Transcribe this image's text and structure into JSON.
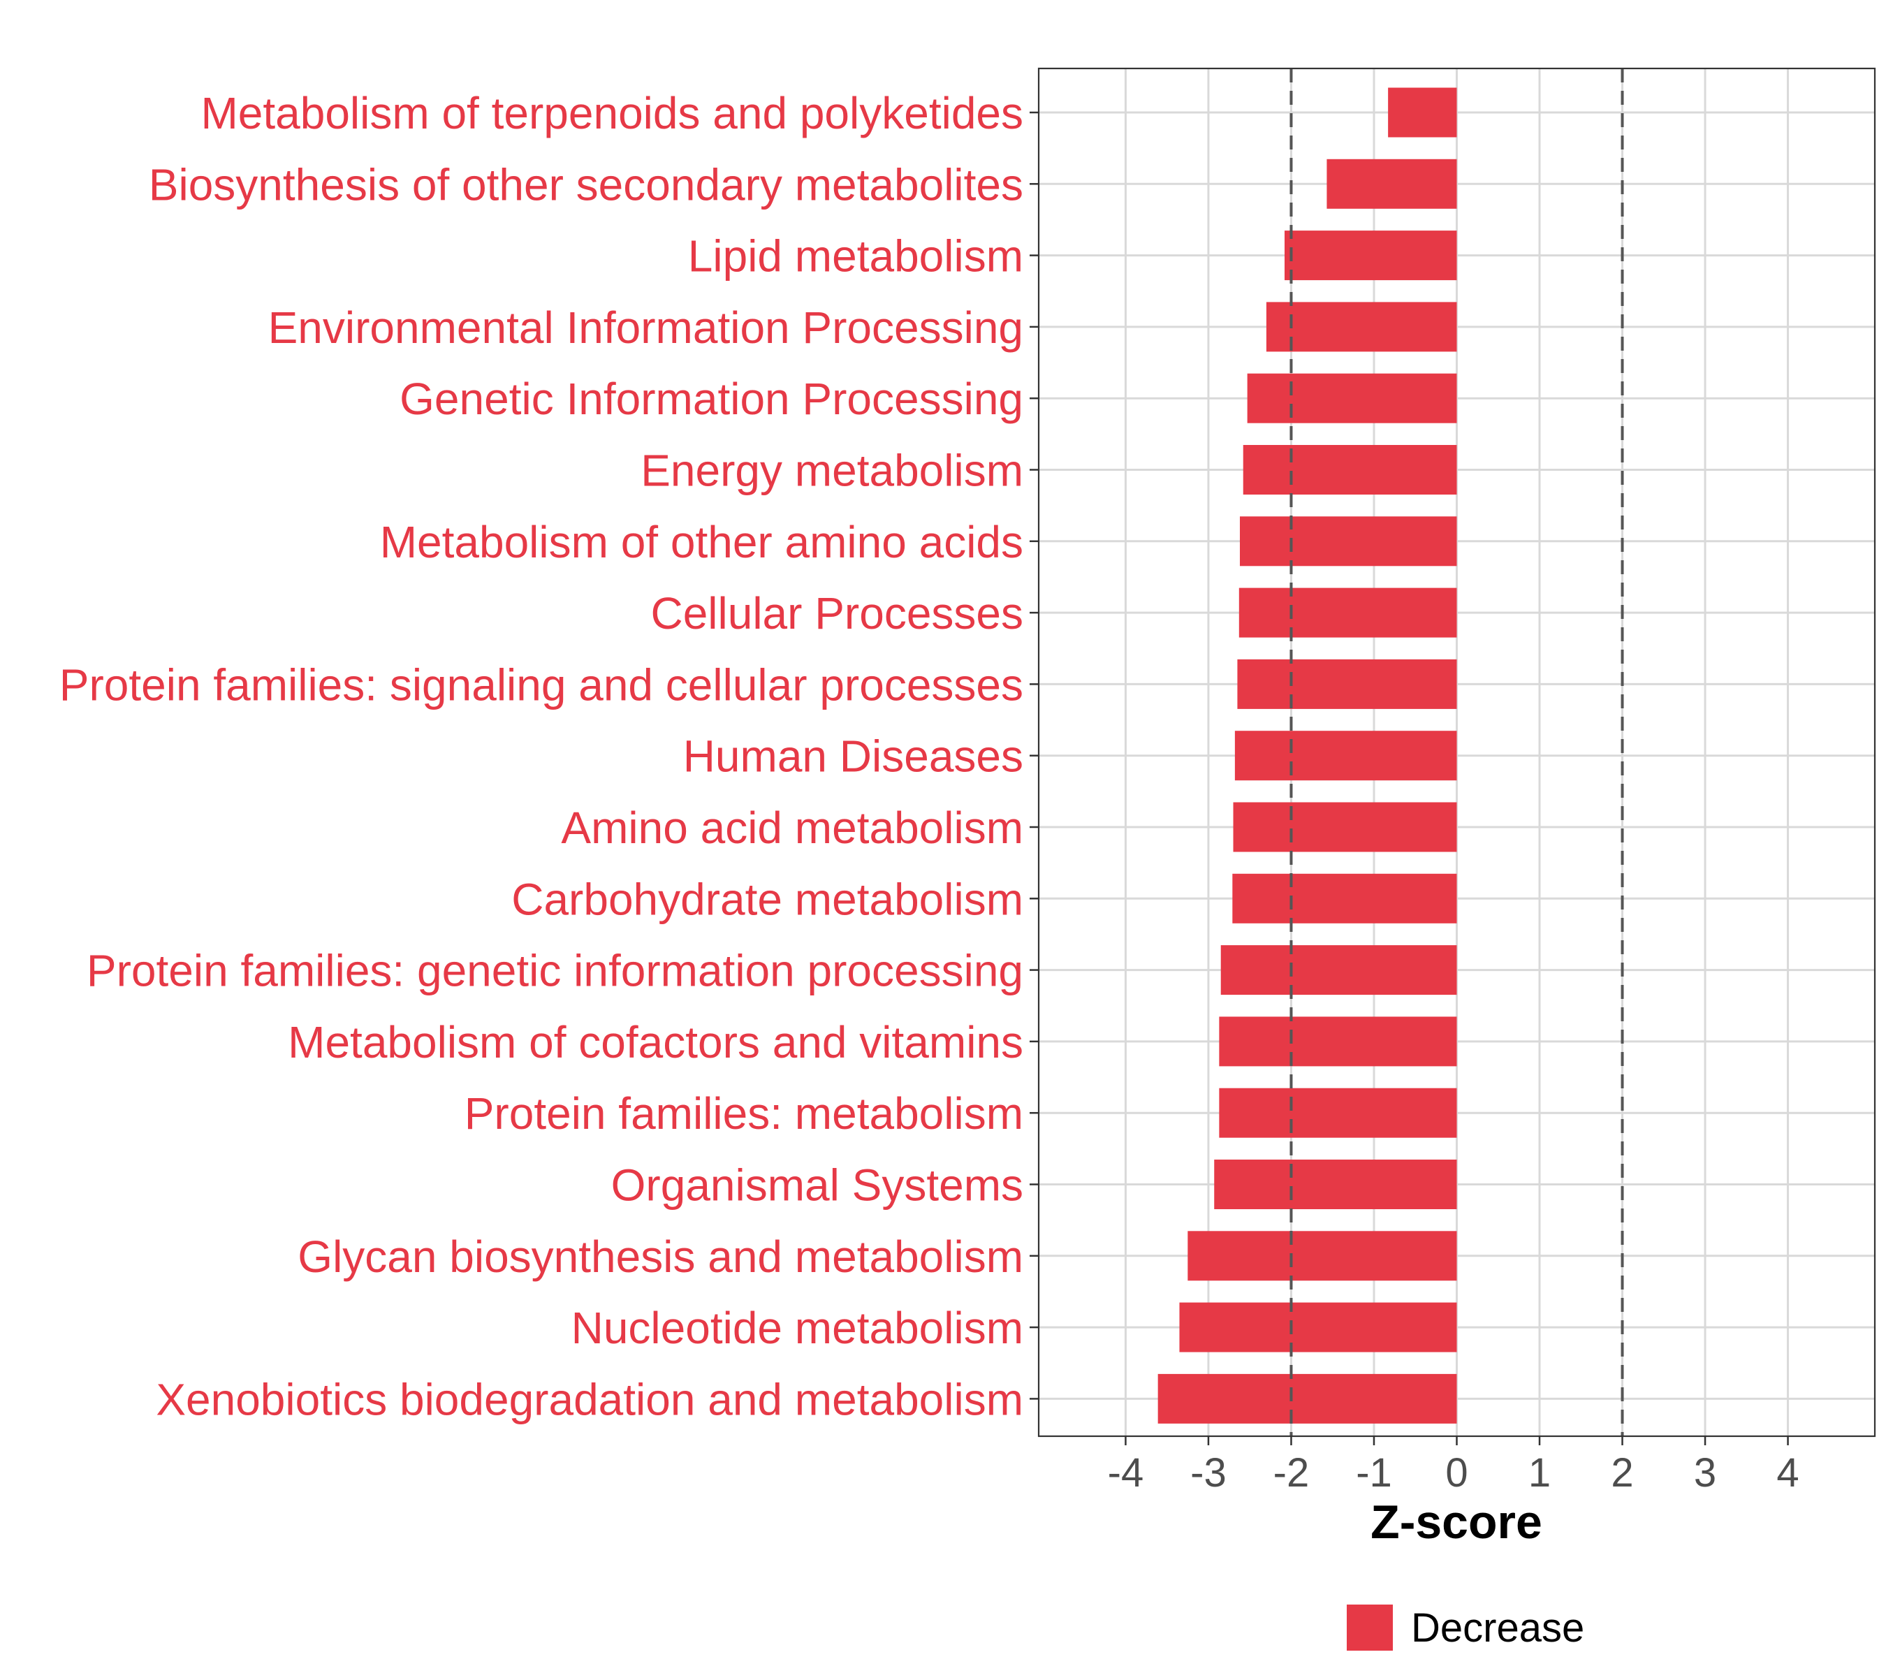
{
  "chart_data": {
    "type": "bar",
    "orientation": "horizontal",
    "categories": [
      "Metabolism of terpenoids and polyketides",
      "Biosynthesis of other secondary metabolites",
      "Lipid metabolism",
      "Environmental Information Processing",
      "Genetic Information Processing",
      "Energy metabolism",
      "Metabolism of other amino acids",
      "Cellular Processes",
      "Protein families: signaling and cellular processes",
      "Human Diseases",
      "Amino acid metabolism",
      "Carbohydrate metabolism",
      "Protein families: genetic information processing",
      "Metabolism of cofactors and vitamins",
      "Protein families: metabolism",
      "Organismal Systems",
      "Glycan biosynthesis and metabolism",
      "Nucleotide metabolism",
      "Xenobiotics biodegradation and metabolism"
    ],
    "values": [
      -0.83,
      -1.57,
      -2.08,
      -2.3,
      -2.53,
      -2.58,
      -2.62,
      -2.63,
      -2.65,
      -2.68,
      -2.7,
      -2.71,
      -2.85,
      -2.87,
      -2.87,
      -2.93,
      -3.25,
      -3.35,
      -3.61
    ],
    "bar_color": "#e63946",
    "label_color": "#e63946",
    "xlabel": "Z-score",
    "ylabel": "",
    "xlim": [
      -5.05,
      5.05
    ],
    "xticks": [
      -4,
      -3,
      -2,
      -1,
      0,
      1,
      2,
      3,
      4
    ],
    "xtick_labels": [
      "-4",
      "-3",
      "-2",
      "-1",
      "0",
      "1",
      "2",
      "3",
      "4"
    ],
    "reference_lines": [
      -2,
      2
    ],
    "grid": true,
    "legend": {
      "position": "bottom",
      "entries": [
        {
          "label": "Decrease",
          "color": "#e63946"
        }
      ]
    }
  }
}
